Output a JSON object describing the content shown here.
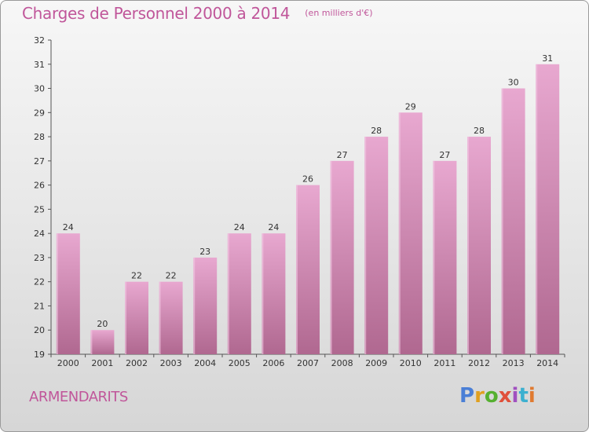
{
  "header": {
    "title": "Charges de Personnel 2000 à 2014",
    "subtitle": "(en milliers d'€)"
  },
  "footer": {
    "commune": "ARMENDARITS",
    "logo_text": "Proxiti"
  },
  "colors": {
    "accent": "#c0569a",
    "bar_top": "#e8a8d0",
    "bar_bottom": "#b06890"
  },
  "chart_data": {
    "type": "bar",
    "title": "Charges de Personnel 2000 à 2014",
    "subtitle": "(en milliers d'€)",
    "categories": [
      "2000",
      "2001",
      "2002",
      "2003",
      "2004",
      "2005",
      "2006",
      "2007",
      "2008",
      "2009",
      "2010",
      "2011",
      "2012",
      "2013",
      "2014"
    ],
    "values": [
      24,
      20,
      22,
      22,
      23,
      24,
      24,
      26,
      27,
      28,
      29,
      27,
      28,
      30,
      31
    ],
    "ylim": [
      19,
      32
    ],
    "yticks": [
      19,
      20,
      21,
      22,
      23,
      24,
      25,
      26,
      27,
      28,
      29,
      30,
      31,
      32
    ],
    "grid": false,
    "xlabel": "",
    "ylabel": ""
  }
}
